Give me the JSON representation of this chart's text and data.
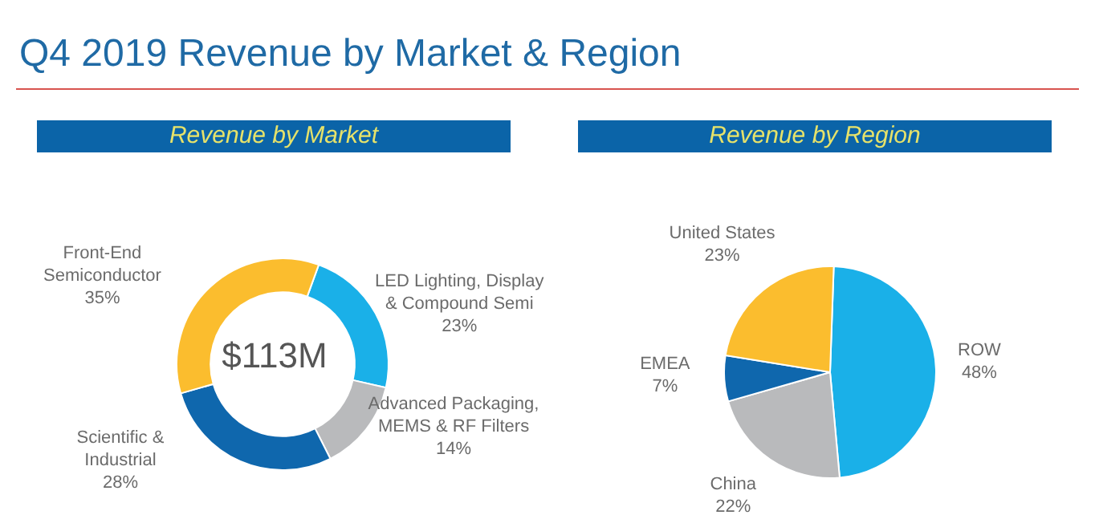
{
  "chart_data": [
    {
      "type": "donut",
      "title": "Q4 2019 Revenue by Market & Region",
      "subtitle": "Revenue by Market",
      "annotations": [
        "$113M"
      ],
      "categories": [
        "LED Lighting, Display & Compound Semi",
        "Advanced Packaging, MEMS & RF Filters",
        "Scientific & Industrial",
        "Front-End Semiconductor"
      ],
      "values": [
        23,
        14,
        28,
        35
      ],
      "value_labels": [
        "23%",
        "14%",
        "28%",
        "35%"
      ],
      "colors": [
        "#1ab0e8",
        "#b9babc",
        "#0f67ad",
        "#fbbd2e"
      ]
    },
    {
      "type": "pie",
      "subtitle": "Revenue by Region",
      "categories": [
        "ROW",
        "China",
        "EMEA",
        "United States"
      ],
      "values": [
        48,
        22,
        7,
        23
      ],
      "value_labels": [
        "48%",
        "22%",
        "7%",
        "23%"
      ],
      "colors": [
        "#1ab0e8",
        "#b9babc",
        "#0f67ad",
        "#fbbd2e"
      ]
    }
  ]
}
